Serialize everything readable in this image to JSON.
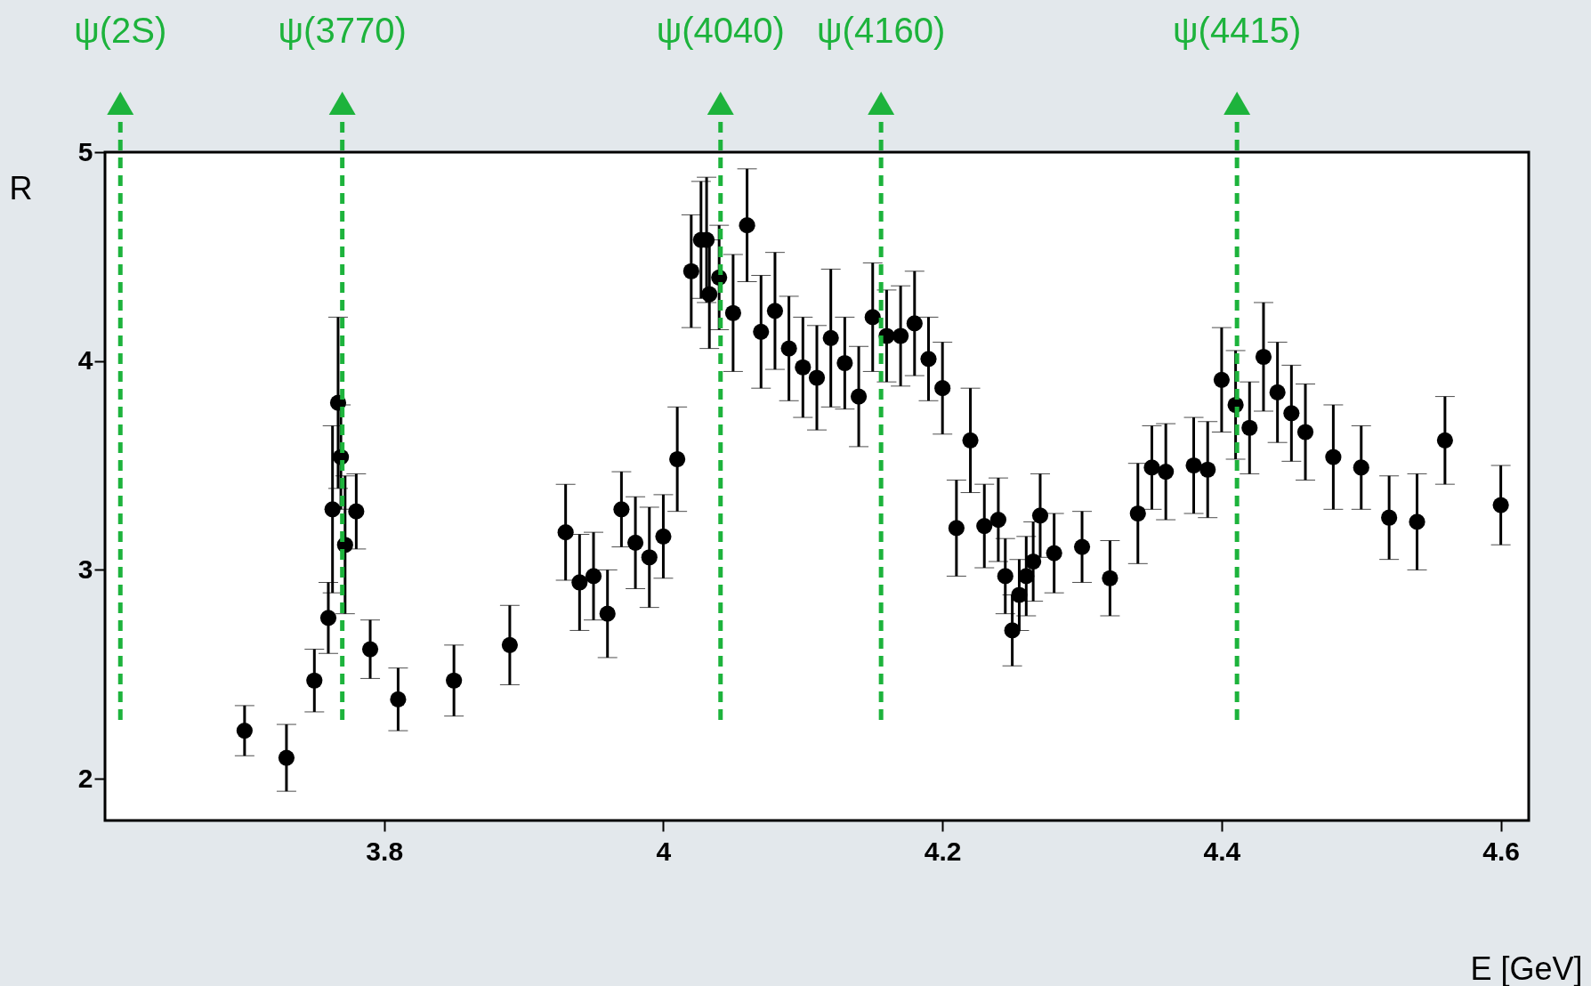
{
  "chart_data": {
    "type": "scatter",
    "xlabel": "E [GeV]",
    "ylabel": "R",
    "xlim": [
      3.6,
      4.62
    ],
    "xticks": [
      3.8,
      4,
      4.2,
      4.4,
      4.6
    ],
    "ylim": [
      1.8,
      5
    ],
    "yticks": [
      2,
      3,
      4,
      5
    ],
    "grid": false,
    "marker": "circle",
    "series": [
      {
        "color": "#000000",
        "x": [
          3.7,
          3.73,
          3.75,
          3.76,
          3.763,
          3.767,
          3.769,
          3.772,
          3.78,
          3.79,
          3.81,
          3.85,
          3.89,
          3.93,
          3.94,
          3.95,
          3.96,
          3.97,
          3.98,
          3.99,
          4.0,
          4.01,
          4.02,
          4.027,
          4.031,
          4.033,
          4.04,
          4.05,
          4.06,
          4.07,
          4.08,
          4.09,
          4.1,
          4.11,
          4.12,
          4.13,
          4.14,
          4.15,
          4.16,
          4.17,
          4.18,
          4.19,
          4.2,
          4.21,
          4.22,
          4.23,
          4.24,
          4.245,
          4.25,
          4.255,
          4.26,
          4.265,
          4.27,
          4.28,
          4.3,
          4.32,
          4.34,
          4.35,
          4.36,
          4.38,
          4.39,
          4.4,
          4.41,
          4.42,
          4.43,
          4.44,
          4.45,
          4.46,
          4.48,
          4.5,
          4.52,
          4.54,
          4.56,
          4.6
        ],
        "values": [
          2.23,
          2.1,
          2.47,
          2.77,
          3.29,
          3.8,
          3.54,
          3.12,
          3.28,
          2.62,
          2.38,
          2.47,
          2.64,
          3.18,
          2.94,
          2.97,
          2.79,
          3.29,
          3.13,
          3.06,
          3.16,
          3.53,
          4.43,
          4.58,
          4.58,
          4.32,
          4.4,
          4.23,
          4.65,
          4.14,
          4.24,
          4.06,
          3.97,
          3.92,
          4.11,
          3.99,
          3.83,
          4.21,
          4.12,
          4.12,
          4.18,
          4.01,
          3.87,
          3.2,
          3.62,
          3.21,
          3.24,
          2.97,
          2.71,
          2.88,
          2.97,
          3.04,
          3.26,
          3.08,
          3.11,
          2.96,
          3.27,
          3.49,
          3.47,
          3.5,
          3.48,
          3.91,
          3.79,
          3.68,
          4.02,
          3.85,
          3.75,
          3.66,
          3.54,
          3.49,
          3.25,
          3.23,
          3.62,
          3.31
        ],
        "errors": [
          0.12,
          0.16,
          0.15,
          0.17,
          0.4,
          0.41,
          0.25,
          0.33,
          0.18,
          0.14,
          0.15,
          0.17,
          0.19,
          0.23,
          0.23,
          0.21,
          0.21,
          0.18,
          0.22,
          0.24,
          0.2,
          0.25,
          0.27,
          0.28,
          0.3,
          0.26,
          0.25,
          0.28,
          0.27,
          0.27,
          0.28,
          0.25,
          0.24,
          0.25,
          0.33,
          0.22,
          0.24,
          0.26,
          0.22,
          0.24,
          0.25,
          0.2,
          0.22,
          0.23,
          0.25,
          0.2,
          0.2,
          0.18,
          0.17,
          0.17,
          0.19,
          0.19,
          0.2,
          0.19,
          0.17,
          0.18,
          0.24,
          0.2,
          0.23,
          0.23,
          0.23,
          0.25,
          0.26,
          0.22,
          0.26,
          0.24,
          0.23,
          0.23,
          0.25,
          0.2,
          0.2,
          0.23,
          0.21,
          0.19
        ]
      }
    ],
    "ref_lines": [
      {
        "axis": "x",
        "value": 3.611,
        "label": "ψ(2S)",
        "color": "#1db33c",
        "line_style": "dashed"
      },
      {
        "axis": "x",
        "value": 3.77,
        "label": "ψ(3770)",
        "color": "#1db33c",
        "line_style": "dashed"
      },
      {
        "axis": "x",
        "value": 4.041,
        "label": "ψ(4040)",
        "color": "#1db33c",
        "line_style": "dashed"
      },
      {
        "axis": "x",
        "value": 4.156,
        "label": "ψ(4160)",
        "color": "#1db33c",
        "line_style": "dashed"
      },
      {
        "axis": "x",
        "value": 4.411,
        "label": "ψ(4415)",
        "color": "#1db33c",
        "line_style": "dashed"
      }
    ]
  }
}
